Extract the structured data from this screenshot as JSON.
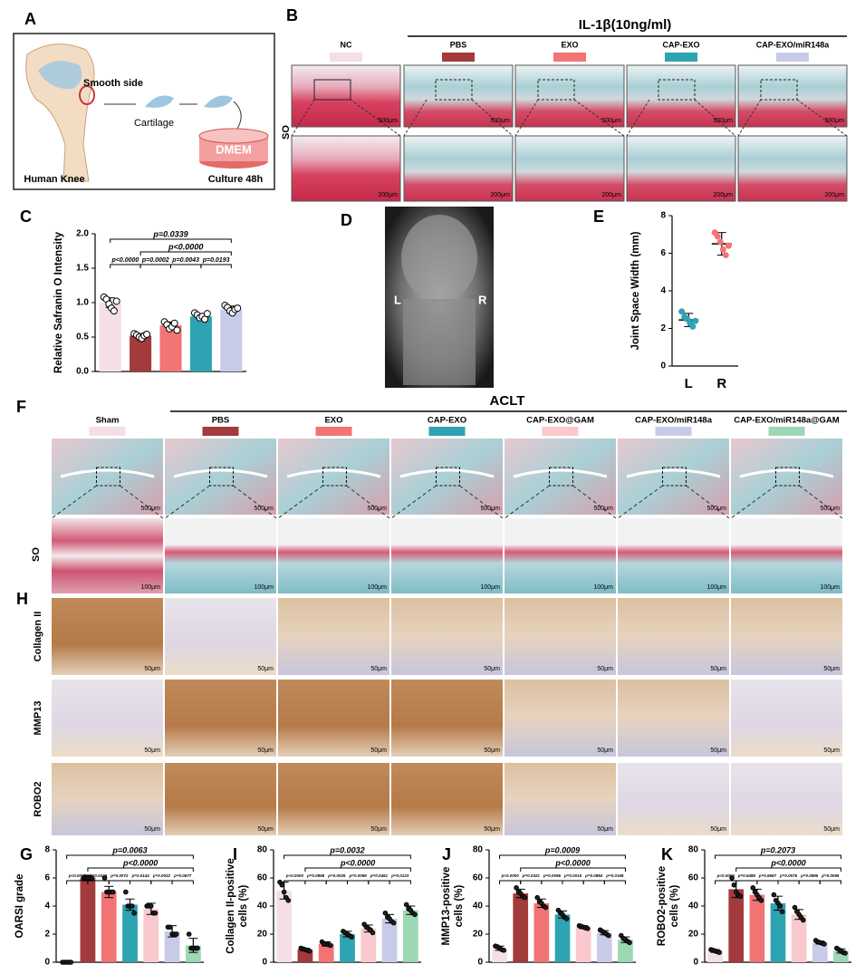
{
  "panel_a": {
    "label": "A",
    "smooth_side": "Smooth side",
    "cartilage": "Cartilage",
    "dmem": "DMEM",
    "human_knee": "Human Knee",
    "culture": "Culture 48h"
  },
  "panel_b": {
    "label": "B",
    "treatment": "IL-1β(10ng/ml)",
    "stain": "SO",
    "groups": [
      {
        "name": "NC",
        "color": "#f3dfe4"
      },
      {
        "name": "PBS",
        "color": "#a33a3c"
      },
      {
        "name": "EXO",
        "color": "#f27474"
      },
      {
        "name": "CAP-EXO",
        "color": "#2ea3b1"
      },
      {
        "name": "CAP-EXO/miR148a",
        "color": "#c8cbe8"
      }
    ],
    "scale_overview": "500μm",
    "scale_zoom": "200μm"
  },
  "panel_d": {
    "label": "D",
    "left": "L",
    "right": "R"
  },
  "panel_f": {
    "label": "F",
    "model": "ACLT",
    "stain": "SO",
    "groups": [
      {
        "name": "Sham",
        "color": "#f3dfe4"
      },
      {
        "name": "PBS",
        "color": "#a33a3c"
      },
      {
        "name": "EXO",
        "color": "#f27474"
      },
      {
        "name": "CAP-EXO",
        "color": "#2ea3b1"
      },
      {
        "name": "CAP-EXO@GAM",
        "color": "#f9c9cd"
      },
      {
        "name": "CAP-EXO/miR148a",
        "color": "#c8cbe8"
      },
      {
        "name": "CAP-EXO/miR148a@GAM",
        "color": "#9bd8b3"
      }
    ],
    "scale_overview": "500μm",
    "scale_zoom": "100μm"
  },
  "panel_h": {
    "label": "H",
    "rows": [
      "Collagen II",
      "MMP13",
      "ROBO2"
    ],
    "scale": "50μm"
  },
  "chart_data": [
    {
      "panel": "C",
      "type": "bar",
      "ylabel": [
        "Relative Safranin O Intensity"
      ],
      "categories": [
        null,
        null,
        null,
        null,
        null
      ],
      "colors": [
        "#f3dfe4",
        "#a33a3c",
        "#f27474",
        "#2ea3b1",
        "#c8cbe8"
      ],
      "values": [
        1.0,
        0.52,
        0.67,
        0.8,
        0.9
      ],
      "errors": [
        0.07,
        0.03,
        0.05,
        0.04,
        0.05
      ],
      "points": [
        [
          1.08,
          1.05,
          0.98,
          0.92,
          0.88,
          1.02
        ],
        [
          0.55,
          0.53,
          0.5,
          0.48,
          0.52,
          0.54
        ],
        [
          0.72,
          0.68,
          0.62,
          0.65,
          0.7,
          0.6
        ],
        [
          0.85,
          0.82,
          0.78,
          0.8,
          0.76,
          0.84
        ],
        [
          0.96,
          0.93,
          0.88,
          0.85,
          0.9,
          0.92
        ]
      ],
      "ylim": [
        0,
        2
      ],
      "yticks": [
        {
          "value": 0,
          "label": "0.0"
        },
        0.5,
        {
          "value": 1,
          "label": "1.0"
        },
        1.5,
        {
          "value": 2,
          "label": "2.0"
        }
      ],
      "annotations": [
        "p=0.0339",
        "p<0.0000",
        "p<0.0000",
        "p=0.0002",
        "p=0.0043",
        "p=0.0193"
      ]
    },
    {
      "panel": "E",
      "type": "dot",
      "ylabel": [
        "Joint Space Width (mm)"
      ],
      "categories": [
        "L",
        "R"
      ],
      "colors": [
        "#2ea3b1",
        "#f27474"
      ],
      "values": [
        2.45,
        6.5
      ],
      "errors": [
        0.35,
        0.6
      ],
      "points": [
        [
          2.9,
          2.6,
          2.5,
          2.3,
          2.1,
          2.4
        ],
        [
          7.1,
          6.9,
          6.6,
          6.2,
          5.9,
          6.4
        ]
      ],
      "ylim": [
        0,
        8
      ],
      "yticks": [
        0,
        2,
        4,
        6,
        8
      ],
      "annotations": []
    },
    {
      "panel": "G",
      "type": "bar",
      "ylabel": [
        "OARSI grade"
      ],
      "categories": [
        null,
        null,
        null,
        null,
        null,
        null,
        null
      ],
      "colors": [
        "#f3dfe4",
        "#a33a3c",
        "#f27474",
        "#2ea3b1",
        "#f9c9cd",
        "#c8cbe8",
        "#9bd8b3"
      ],
      "values": [
        0,
        6.0,
        5.0,
        4.1,
        3.8,
        2.2,
        1.2
      ],
      "errors": [
        0,
        0.2,
        0.4,
        0.4,
        0.4,
        0.4,
        0.5
      ],
      "points": [
        [
          0,
          0,
          0,
          0,
          0
        ],
        [
          6,
          6,
          6,
          6,
          6
        ],
        [
          6,
          5,
          5,
          5,
          5
        ],
        [
          5,
          4,
          4,
          4,
          3.5
        ],
        [
          4,
          4,
          4,
          3.5,
          3.5
        ],
        [
          2.5,
          2.5,
          2,
          2,
          2
        ],
        [
          2,
          1,
          1,
          1,
          1
        ]
      ],
      "ylim": [
        0,
        8
      ],
      "yticks": [
        0,
        2,
        4,
        6,
        8
      ],
      "annotations": [
        "p=0.0063",
        "p<0.0000",
        "p<0.0000",
        "p=0.0243",
        "p=0.0072",
        "p=0.0144",
        "p=0.0022",
        "p=0.0677"
      ]
    },
    {
      "panel": "I",
      "type": "bar",
      "ylabel": [
        "Collagen II-positive",
        "cells (%)"
      ],
      "categories": [
        null,
        null,
        null,
        null,
        null,
        null,
        null
      ],
      "colors": [
        "#f3dfe4",
        "#a33a3c",
        "#f27474",
        "#2ea3b1",
        "#f9c9cd",
        "#c8cbe8",
        "#9bd8b3"
      ],
      "values": [
        51,
        9,
        13,
        20,
        24,
        31,
        37
      ],
      "errors": [
        6,
        1,
        1.5,
        2,
        2.5,
        3,
        3
      ],
      "points": [
        [
          57,
          55,
          50,
          46,
          44
        ],
        [
          10,
          9.5,
          9,
          8.5,
          8
        ],
        [
          14.5,
          13,
          13,
          12.5,
          12
        ],
        [
          22,
          21,
          20,
          19,
          18
        ],
        [
          27,
          25,
          24,
          23,
          21
        ],
        [
          35,
          32,
          31,
          29,
          28
        ],
        [
          41,
          38,
          37,
          35,
          34
        ]
      ],
      "ylim": [
        0,
        80
      ],
      "yticks": [
        0,
        20,
        40,
        60,
        80
      ],
      "annotations": [
        "p=0.0032",
        "p<0.0000",
        "p<0.0000",
        "p=0.0898",
        "p=0.0026",
        "p=0.0096",
        "p=0.0451",
        "p=0.0123"
      ]
    },
    {
      "panel": "J",
      "type": "bar",
      "ylabel": [
        "MMP13-positive",
        "cells (%)"
      ],
      "categories": [
        null,
        null,
        null,
        null,
        null,
        null,
        null
      ],
      "colors": [
        "#f3dfe4",
        "#a33a3c",
        "#f27474",
        "#2ea3b1",
        "#f9c9cd",
        "#c8cbe8",
        "#9bd8b3"
      ],
      "values": [
        10,
        49,
        42,
        34,
        25,
        21,
        16
      ],
      "errors": [
        1.5,
        3,
        3,
        2.5,
        1,
        1.5,
        2
      ],
      "points": [
        [
          11.5,
          11,
          10,
          9,
          8.5
        ],
        [
          53,
          50,
          49,
          47,
          46
        ],
        [
          46,
          43,
          42,
          40,
          39
        ],
        [
          37,
          35,
          34,
          32,
          31
        ],
        [
          26,
          25.5,
          25,
          24.5,
          24
        ],
        [
          23,
          22,
          21,
          20,
          19
        ],
        [
          19,
          17,
          16,
          15,
          14
        ]
      ],
      "ylim": [
        0,
        80
      ],
      "yticks": [
        0,
        20,
        40,
        60,
        80
      ],
      "annotations": [
        "p=0.0009",
        "p<0.0000",
        "p<0.0000",
        "p=0.0321",
        "p=0.0096",
        "p=0.0015",
        "p=0.0884",
        "p=0.0168"
      ]
    },
    {
      "panel": "K",
      "type": "bar",
      "ylabel": [
        "ROBO2-positive",
        "cells (%)"
      ],
      "categories": [
        null,
        null,
        null,
        null,
        null,
        null,
        null
      ],
      "colors": [
        "#f3dfe4",
        "#a33a3c",
        "#f27474",
        "#2ea3b1",
        "#f9c9cd",
        "#c8cbe8",
        "#9bd8b3"
      ],
      "values": [
        8,
        52,
        48,
        42,
        34,
        14,
        8
      ],
      "errors": [
        1,
        6,
        4,
        5,
        3.5,
        1,
        1.5
      ],
      "points": [
        [
          9,
          8.5,
          8,
          7.5,
          7
        ],
        [
          60,
          55,
          50,
          48,
          47
        ],
        [
          53,
          50,
          48,
          46,
          44
        ],
        [
          48,
          44,
          42,
          40,
          36
        ],
        [
          39,
          36,
          34,
          32,
          30
        ],
        [
          15.5,
          14.5,
          14,
          13.5,
          13
        ],
        [
          10,
          9,
          8,
          7,
          6.5
        ]
      ],
      "ylim": [
        0,
        80
      ],
      "yticks": [
        0,
        20,
        40,
        60,
        80
      ],
      "annotations": [
        "p=0.2073",
        "p<0.0000",
        "p<0.0000",
        "p=0.5488",
        "p=0.5657",
        "p=0.0076",
        "p=0.0895",
        "p=0.0095"
      ]
    }
  ]
}
